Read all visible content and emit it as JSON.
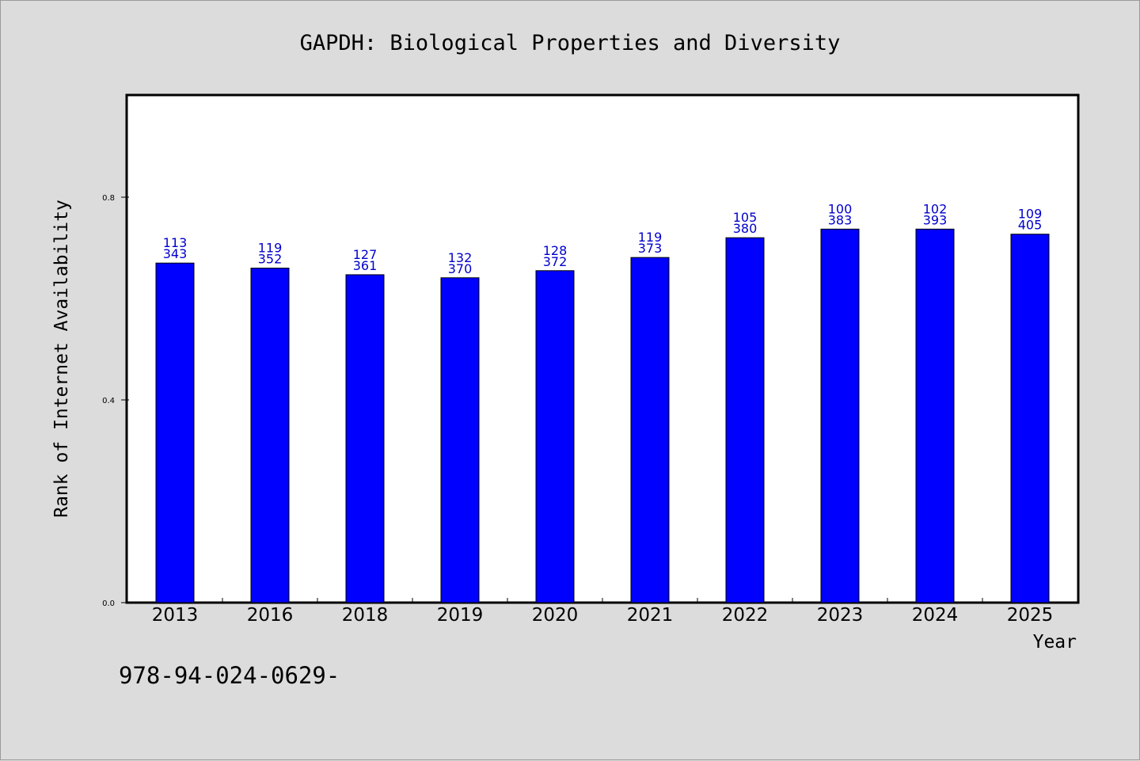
{
  "colors": {
    "background": "#dcdcdc",
    "plot_background": "#ffffff",
    "bar_fill": "#0000ff",
    "data_label": "#0000cc"
  },
  "footer": {
    "isbn": "978-94-024-0629-"
  },
  "chart_data": {
    "type": "bar",
    "title": "GAPDH: Biological Properties and Diversity",
    "xlabel": "Year",
    "ylabel": "Rank of Internet Availability",
    "categories": [
      "2013",
      "2016",
      "2018",
      "2019",
      "2020",
      "2021",
      "2022",
      "2023",
      "2024",
      "2025"
    ],
    "values": [
      0.67,
      0.66,
      0.647,
      0.641,
      0.655,
      0.681,
      0.72,
      0.737,
      0.737,
      0.727
    ],
    "labels_top": [
      "113",
      "119",
      "127",
      "132",
      "128",
      "119",
      "105",
      "100",
      "102",
      "109"
    ],
    "labels_bottom": [
      "343",
      "352",
      "361",
      "370",
      "372",
      "373",
      "380",
      "383",
      "393",
      "405"
    ],
    "ylim": [
      0,
      1.0
    ],
    "yticks": [
      0.0,
      0.4,
      0.8
    ],
    "ytick_labels": [
      "0.0",
      "0.4",
      "0.8"
    ],
    "grid": false,
    "legend": "none"
  }
}
